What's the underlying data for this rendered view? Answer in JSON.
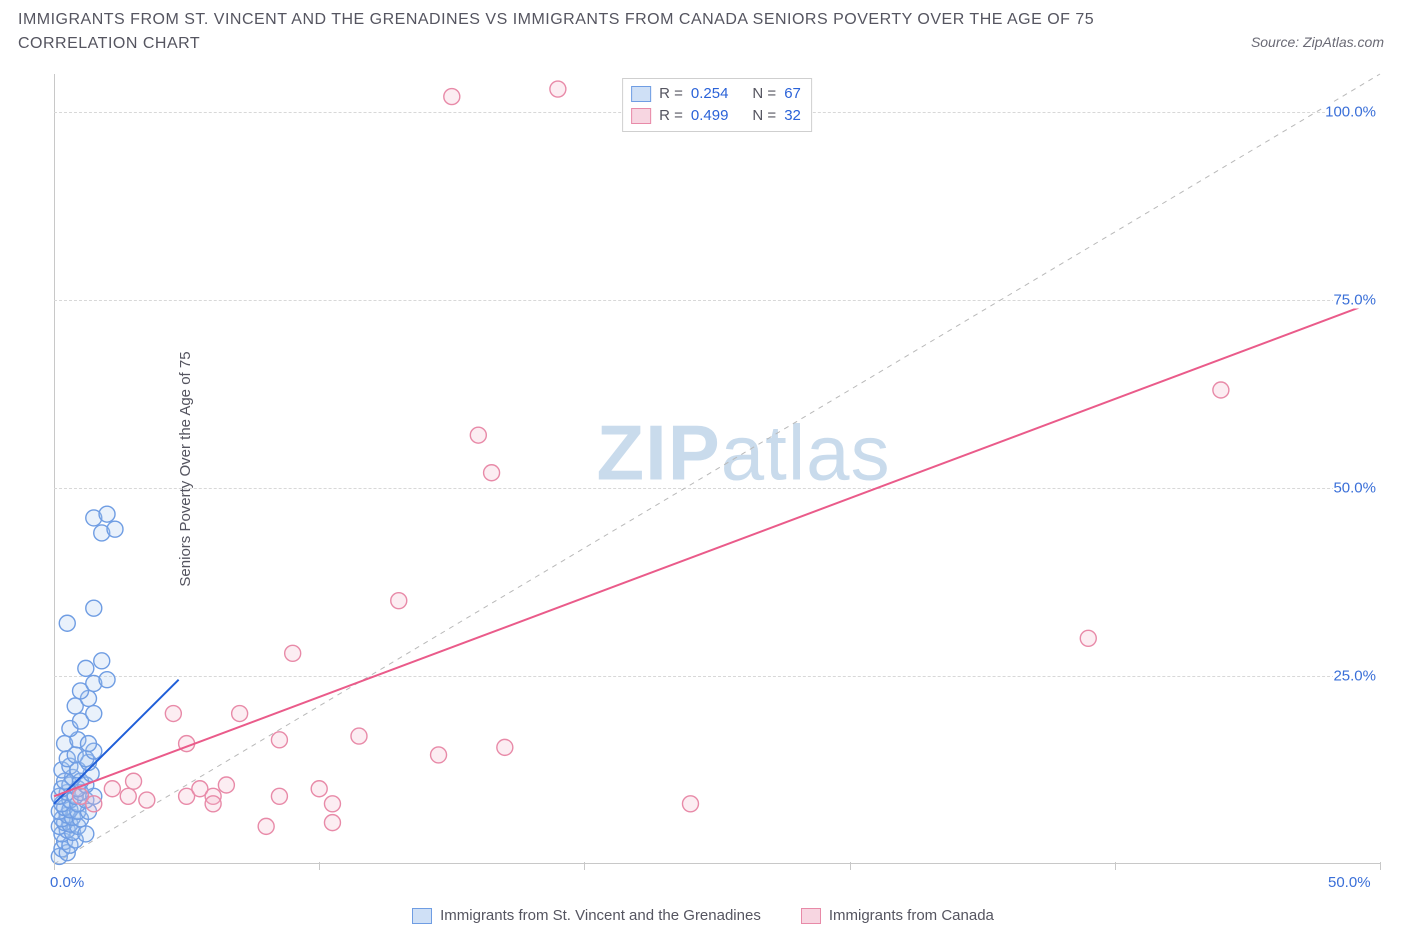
{
  "title_line1": "IMMIGRANTS FROM ST. VINCENT AND THE GRENADINES VS IMMIGRANTS FROM CANADA SENIORS POVERTY OVER THE AGE OF 75",
  "title_line2": "CORRELATION CHART",
  "source_text": "Source: ZipAtlas.com",
  "ylabel": "Seniors Poverty Over the Age of 75",
  "watermark_bold": "ZIP",
  "watermark_light": "atlas",
  "chart": {
    "type": "scatter",
    "background_color": "#ffffff",
    "grid_color": "#d8d8d8",
    "axis_color": "#c8c8c8",
    "tick_label_color": "#3a6fd8",
    "tick_fontsize": 15,
    "xlim": [
      0,
      50
    ],
    "ylim": [
      0,
      105
    ],
    "y_ticks": [
      25,
      50,
      75,
      100
    ],
    "y_tick_labels": [
      "25.0%",
      "50.0%",
      "75.0%",
      "100.0%"
    ],
    "x_tick_marks": [
      0,
      10,
      20,
      30,
      40,
      50
    ],
    "x_visible_labels": {
      "0": "0.0%",
      "50": "50.0%"
    },
    "marker_radius": 8,
    "marker_stroke_width": 1.4,
    "marker_fill_opacity": 0.25,
    "trend_line_width": 2,
    "trend_line_dash": "5 4",
    "identity_line": {
      "color": "#b9b9b9",
      "width": 1,
      "dash": "5 5",
      "from": [
        0,
        0
      ],
      "to": [
        50,
        105
      ]
    }
  },
  "series": [
    {
      "id": "svg_series",
      "label": "Immigrants from St. Vincent and the Grenadines",
      "marker_stroke": "#6f9de3",
      "marker_fill": "#a9c6ef",
      "trend_color": "#1f5ed8",
      "trend": {
        "from": [
          0,
          8
        ],
        "to": [
          4.7,
          24.5
        ]
      },
      "R": "0.254",
      "N": "67",
      "points": [
        [
          0.2,
          1.0
        ],
        [
          0.3,
          2.0
        ],
        [
          0.5,
          1.5
        ],
        [
          0.4,
          3.0
        ],
        [
          0.6,
          2.5
        ],
        [
          0.8,
          3.2
        ],
        [
          0.3,
          4.0
        ],
        [
          0.5,
          4.5
        ],
        [
          0.7,
          4.2
        ],
        [
          0.2,
          5.0
        ],
        [
          0.4,
          5.5
        ],
        [
          0.6,
          5.3
        ],
        [
          0.9,
          5.0
        ],
        [
          1.2,
          4.0
        ],
        [
          0.3,
          6.0
        ],
        [
          0.5,
          6.5
        ],
        [
          0.7,
          6.2
        ],
        [
          1.0,
          6.0
        ],
        [
          0.2,
          7.0
        ],
        [
          0.4,
          7.5
        ],
        [
          0.6,
          7.2
        ],
        [
          0.9,
          7.0
        ],
        [
          1.3,
          7.0
        ],
        [
          0.3,
          8.0
        ],
        [
          0.6,
          8.5
        ],
        [
          0.9,
          8.0
        ],
        [
          1.2,
          8.5
        ],
        [
          0.2,
          9.0
        ],
        [
          0.5,
          9.5
        ],
        [
          0.8,
          9.0
        ],
        [
          1.0,
          9.5
        ],
        [
          1.5,
          9.0
        ],
        [
          0.3,
          10.0
        ],
        [
          0.6,
          10.5
        ],
        [
          0.9,
          10.0
        ],
        [
          1.2,
          10.5
        ],
        [
          0.4,
          11.0
        ],
        [
          0.7,
          11.5
        ],
        [
          1.0,
          11.0
        ],
        [
          1.4,
          12.0
        ],
        [
          0.3,
          12.5
        ],
        [
          0.6,
          13.0
        ],
        [
          0.9,
          12.5
        ],
        [
          1.3,
          13.5
        ],
        [
          0.5,
          14.0
        ],
        [
          0.8,
          14.5
        ],
        [
          1.2,
          14.0
        ],
        [
          1.5,
          15.0
        ],
        [
          0.4,
          16.0
        ],
        [
          0.9,
          16.5
        ],
        [
          1.3,
          16.0
        ],
        [
          0.6,
          18.0
        ],
        [
          1.0,
          19.0
        ],
        [
          1.5,
          20.0
        ],
        [
          0.8,
          21.0
        ],
        [
          1.3,
          22.0
        ],
        [
          1.0,
          23.0
        ],
        [
          1.5,
          24.0
        ],
        [
          2.0,
          24.5
        ],
        [
          1.2,
          26.0
        ],
        [
          1.8,
          27.0
        ],
        [
          1.5,
          34.0
        ],
        [
          0.5,
          32.0
        ],
        [
          1.8,
          44.0
        ],
        [
          2.3,
          44.5
        ],
        [
          1.5,
          46.0
        ],
        [
          2.0,
          46.5
        ]
      ]
    },
    {
      "id": "canada_series",
      "label": "Immigrants from Canada",
      "marker_stroke": "#e88aa8",
      "marker_fill": "#f3b9cc",
      "trend_color": "#ea5b8a",
      "trend": {
        "from": [
          0,
          9
        ],
        "to": [
          50,
          75
        ]
      },
      "R": "0.499",
      "N": "32",
      "points": [
        [
          1.0,
          9.0
        ],
        [
          1.5,
          8.0
        ],
        [
          2.2,
          10.0
        ],
        [
          2.8,
          9.0
        ],
        [
          3.5,
          8.5
        ],
        [
          3.0,
          11.0
        ],
        [
          4.5,
          20.0
        ],
        [
          5.0,
          9.0
        ],
        [
          5.5,
          10.0
        ],
        [
          5.0,
          16.0
        ],
        [
          6.0,
          9.0
        ],
        [
          6.5,
          10.5
        ],
        [
          6.0,
          8.0
        ],
        [
          7.0,
          20.0
        ],
        [
          8.0,
          5.0
        ],
        [
          8.5,
          9.0
        ],
        [
          8.5,
          16.5
        ],
        [
          9.0,
          28.0
        ],
        [
          10.0,
          10.0
        ],
        [
          10.5,
          8.0
        ],
        [
          10.5,
          5.5
        ],
        [
          11.5,
          17.0
        ],
        [
          13.0,
          35.0
        ],
        [
          14.5,
          14.5
        ],
        [
          16.0,
          57.0
        ],
        [
          16.5,
          52.0
        ],
        [
          17.0,
          15.5
        ],
        [
          24.0,
          8.0
        ],
        [
          15.0,
          102.0
        ],
        [
          19.0,
          103.0
        ],
        [
          39.0,
          30.0
        ],
        [
          44.0,
          63.0
        ]
      ]
    }
  ],
  "stats_box": {
    "rows": [
      {
        "swatch_fill": "#cfe0f6",
        "swatch_border": "#6f9de3",
        "R": "0.254",
        "N": "67"
      },
      {
        "swatch_fill": "#f7d6e1",
        "swatch_border": "#e88aa8",
        "R": "0.499",
        "N": "32"
      }
    ]
  },
  "legend": [
    {
      "swatch_fill": "#cfe0f6",
      "swatch_border": "#6f9de3",
      "label": "Immigrants from St. Vincent and the Grenadines"
    },
    {
      "swatch_fill": "#f7d6e1",
      "swatch_border": "#e88aa8",
      "label": "Immigrants from Canada"
    }
  ]
}
